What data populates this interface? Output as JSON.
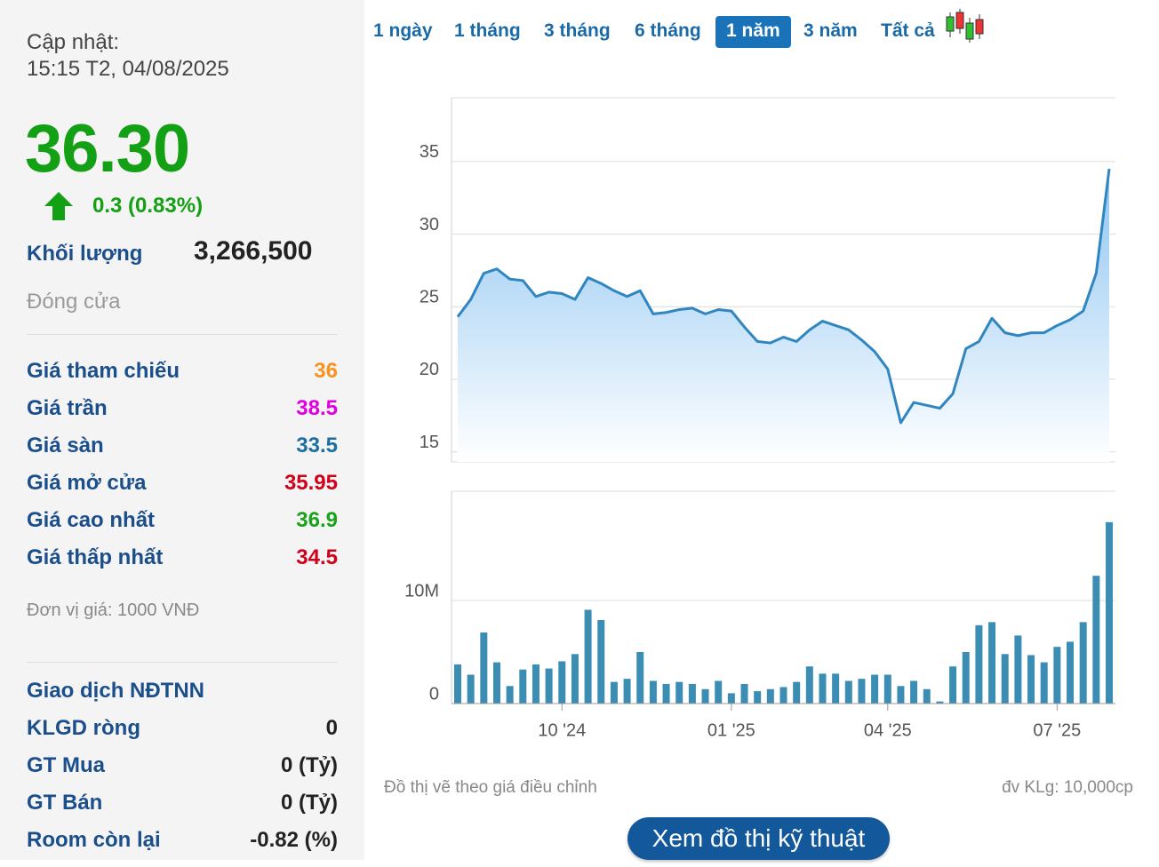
{
  "sidebar": {
    "update_label": "Cập nhật:",
    "update_time": "15:15 T2, 04/08/2025",
    "price": "36.30",
    "change": "0.3 (0.83%)",
    "volume_label": "Khối lượng",
    "volume": "3,266,500",
    "status": "Đóng cửa",
    "prices": [
      {
        "label": "Giá tham chiếu",
        "value": "36",
        "color": "#f7931e"
      },
      {
        "label": "Giá trần",
        "value": "38.5",
        "color": "#e000e0"
      },
      {
        "label": "Giá sàn",
        "value": "33.5",
        "color": "#1c6fa0"
      },
      {
        "label": "Giá mở cửa",
        "value": "35.95",
        "color": "#d0021b"
      },
      {
        "label": "Giá cao nhất",
        "value": "36.9",
        "color": "#1aa21a"
      },
      {
        "label": "Giá thấp nhất",
        "value": "34.5",
        "color": "#d0021b"
      }
    ],
    "unit_note": "Đơn vị giá: 1000 VNĐ",
    "foreign_title": "Giao dịch NĐTNN",
    "foreign": [
      {
        "label": "KLGD ròng",
        "value": "0"
      },
      {
        "label": "GT Mua",
        "value": "0 (Tỷ)"
      },
      {
        "label": "GT Bán",
        "value": "0 (Tỷ)"
      },
      {
        "label": "Room còn lại",
        "value": "-0.82 (%)"
      }
    ]
  },
  "tabs": [
    "1 ngày",
    "1 tháng",
    "3 tháng",
    "6 tháng",
    "1 năm",
    "3 năm",
    "Tất cả"
  ],
  "active_tab": "1 năm",
  "chart_data": {
    "type": "stock",
    "categories": [
      null,
      null,
      null,
      null,
      null,
      null,
      null,
      null,
      "10 '24",
      null,
      null,
      null,
      null,
      null,
      null,
      null,
      null,
      null,
      null,
      null,
      null,
      "01 '25",
      null,
      null,
      null,
      null,
      null,
      null,
      null,
      null,
      null,
      null,
      null,
      "04 '25",
      null,
      null,
      null,
      null,
      null,
      null,
      null,
      null,
      null,
      null,
      null,
      null,
      "07 '25",
      null,
      null,
      null,
      null
    ],
    "price": {
      "color": "#2f86c0",
      "values": [
        24.3,
        25.5,
        27.3,
        27.6,
        26.9,
        26.8,
        25.7,
        26.0,
        25.9,
        25.5,
        27.0,
        26.6,
        26.1,
        25.7,
        26.1,
        24.5,
        24.6,
        24.8,
        24.9,
        24.5,
        24.8,
        24.7,
        23.6,
        22.6,
        22.5,
        22.9,
        22.6,
        23.4,
        24.0,
        23.7,
        23.4,
        22.7,
        21.9,
        20.7,
        17.0,
        18.4,
        18.2,
        18.0,
        19.0,
        22.1,
        22.6,
        24.2,
        23.2,
        23.0,
        23.2,
        23.2,
        23.7,
        24.1,
        24.7,
        27.3,
        34.5
      ],
      "ylim": [
        14.3,
        39.4
      ],
      "yticks": [
        15,
        20,
        25,
        30,
        35
      ]
    },
    "volume": {
      "color": "#3b8db3",
      "values": [
        3800000,
        2800000,
        6900000,
        4000000,
        1700000,
        3300000,
        3800000,
        3400000,
        4100000,
        4800000,
        9100000,
        8100000,
        2100000,
        2400000,
        5000000,
        2200000,
        1900000,
        2100000,
        1900000,
        1400000,
        2200000,
        1000000,
        1900000,
        1200000,
        1400000,
        1600000,
        2100000,
        3600000,
        2900000,
        2900000,
        2200000,
        2400000,
        2800000,
        2800000,
        1700000,
        2200000,
        1400000,
        200000,
        3600000,
        5000000,
        7600000,
        7900000,
        4800000,
        6600000,
        4700000,
        4000000,
        5500000,
        6000000,
        7900000,
        12400000,
        17600000
      ],
      "ylim": [
        0,
        20600000
      ],
      "yticks": [
        0,
        {
          "value": 10000000,
          "label": "10M"
        }
      ]
    },
    "grid": true
  },
  "footer": {
    "note": "Đồ thị vẽ theo giá điều chỉnh",
    "unit": "đv KLg: 10,000cp",
    "button": "Xem đồ thị kỹ thuật"
  }
}
